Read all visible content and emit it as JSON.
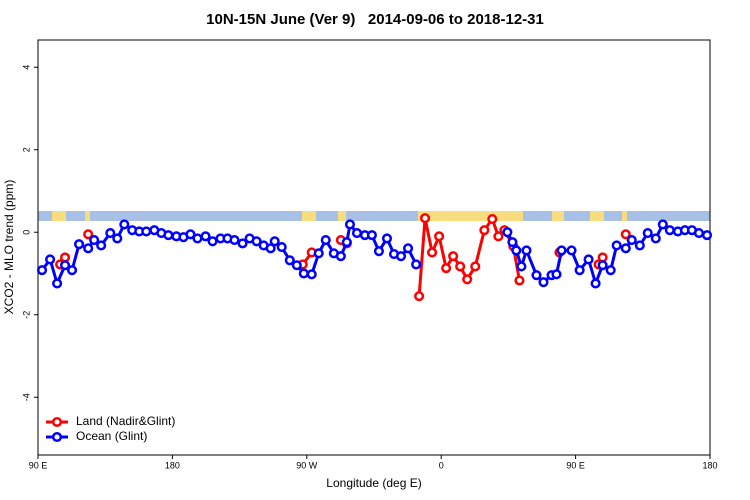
{
  "chart_data": {
    "type": "line",
    "title": "10N-15N June (Ver 9)   2014-09-06 to 2018-12-31",
    "x_label": "Longitude (deg E)",
    "y_label": "XCO2 - MLO trend (ppm)",
    "xlim": [
      90,
      540
    ],
    "ylim": [
      -5.4,
      4.66
    ],
    "xticks": [
      {
        "value": 90,
        "label": "90 E"
      },
      {
        "value": 180,
        "label": "180"
      },
      {
        "value": 270,
        "label": "90 W"
      },
      {
        "value": 360,
        "label": "0"
      },
      {
        "value": 450,
        "label": "90 E"
      },
      {
        "value": 540,
        "label": "180"
      }
    ],
    "yticks": [
      -4,
      -2,
      0,
      2,
      4
    ],
    "legend": "bottom-left",
    "series": [
      {
        "name": "Land (Nadir&Glint)",
        "color": "#ff0000",
        "x": [
          104.8,
          108.1,
          115,
          123.6,
          200,
          267.3,
          273.3,
          283,
          292.8,
          296.8,
          320,
          345.2,
          349.2,
          353.9,
          358.6,
          363.3,
          368.0,
          372.7,
          377.4,
          382.8,
          388.9,
          394.2,
          398.3,
          402.3,
          408.3,
          412.4,
          430,
          439.2,
          450,
          465.4,
          468.1,
          475,
          483.6
        ],
        "values": [
          -0.78,
          -0.61,
          null,
          -0.05,
          null,
          -0.78,
          -0.49,
          null,
          -0.19,
          -0.27,
          null,
          -1.55,
          0.34,
          -0.49,
          -0.1,
          -0.87,
          -0.58,
          -0.83,
          -1.14,
          -0.83,
          0.05,
          0.32,
          -0.1,
          0.05,
          -0.34,
          -1.17,
          null,
          -0.49,
          null,
          -0.78,
          -0.61,
          null,
          -0.05
        ]
      },
      {
        "name": "Ocean (Glint)",
        "color": "#0000ff",
        "x": [
          92.7,
          98.1,
          102.8,
          108.1,
          112.8,
          117.5,
          123.6,
          127.6,
          132.3,
          138.4,
          143.1,
          147.8,
          153.1,
          157.8,
          162.5,
          167.9,
          172.6,
          177.3,
          182.7,
          187.4,
          192.1,
          196.8,
          202.2,
          206.9,
          212.2,
          216.9,
          221.6,
          227.0,
          231.7,
          236.4,
          241.1,
          245.8,
          248.5,
          253.2,
          258.6,
          263.3,
          268.0,
          273.3,
          278.0,
          282.7,
          288.1,
          292.8,
          296.8,
          298.9,
          303.6,
          308.9,
          313.6,
          318.3,
          323.7,
          328.4,
          333.1,
          337.8,
          343.2,
          370,
          404.3,
          407.7,
          410.3,
          413.7,
          417.1,
          423.8,
          428.5,
          433.9,
          437.2,
          440.6,
          447.3,
          452.7,
          458.7,
          463.4,
          468.1,
          473.5,
          477.5,
          483.6,
          487.6,
          493.0,
          498.3,
          503.7,
          508.4,
          513.1,
          518.5,
          523.2,
          527.9,
          532.6,
          538.0
        ],
        "values": [
          -0.92,
          -0.66,
          -1.24,
          -0.8,
          -0.92,
          -0.29,
          -0.39,
          -0.19,
          -0.32,
          -0.02,
          -0.15,
          0.19,
          0.05,
          0.02,
          0.02,
          0.05,
          -0.02,
          -0.07,
          -0.1,
          -0.12,
          -0.05,
          -0.15,
          -0.1,
          -0.22,
          -0.15,
          -0.15,
          -0.19,
          -0.27,
          -0.15,
          -0.22,
          -0.32,
          -0.39,
          -0.22,
          -0.36,
          -0.68,
          -0.8,
          -1.0,
          -1.02,
          -0.51,
          -0.19,
          -0.51,
          -0.58,
          -0.24,
          0.19,
          -0.02,
          -0.07,
          -0.07,
          -0.46,
          -0.15,
          -0.53,
          -0.58,
          -0.39,
          -0.78,
          null,
          0.0,
          -0.24,
          -0.44,
          -0.83,
          -0.44,
          -1.04,
          -1.21,
          -1.04,
          -1.02,
          -0.44,
          -0.44,
          -0.92,
          -0.66,
          -1.24,
          -0.8,
          -0.92,
          -0.32,
          -0.39,
          -0.19,
          -0.32,
          -0.02,
          -0.15,
          0.19,
          0.05,
          0.02,
          0.05,
          0.05,
          -0.02,
          -0.07
        ]
      }
    ]
  }
}
